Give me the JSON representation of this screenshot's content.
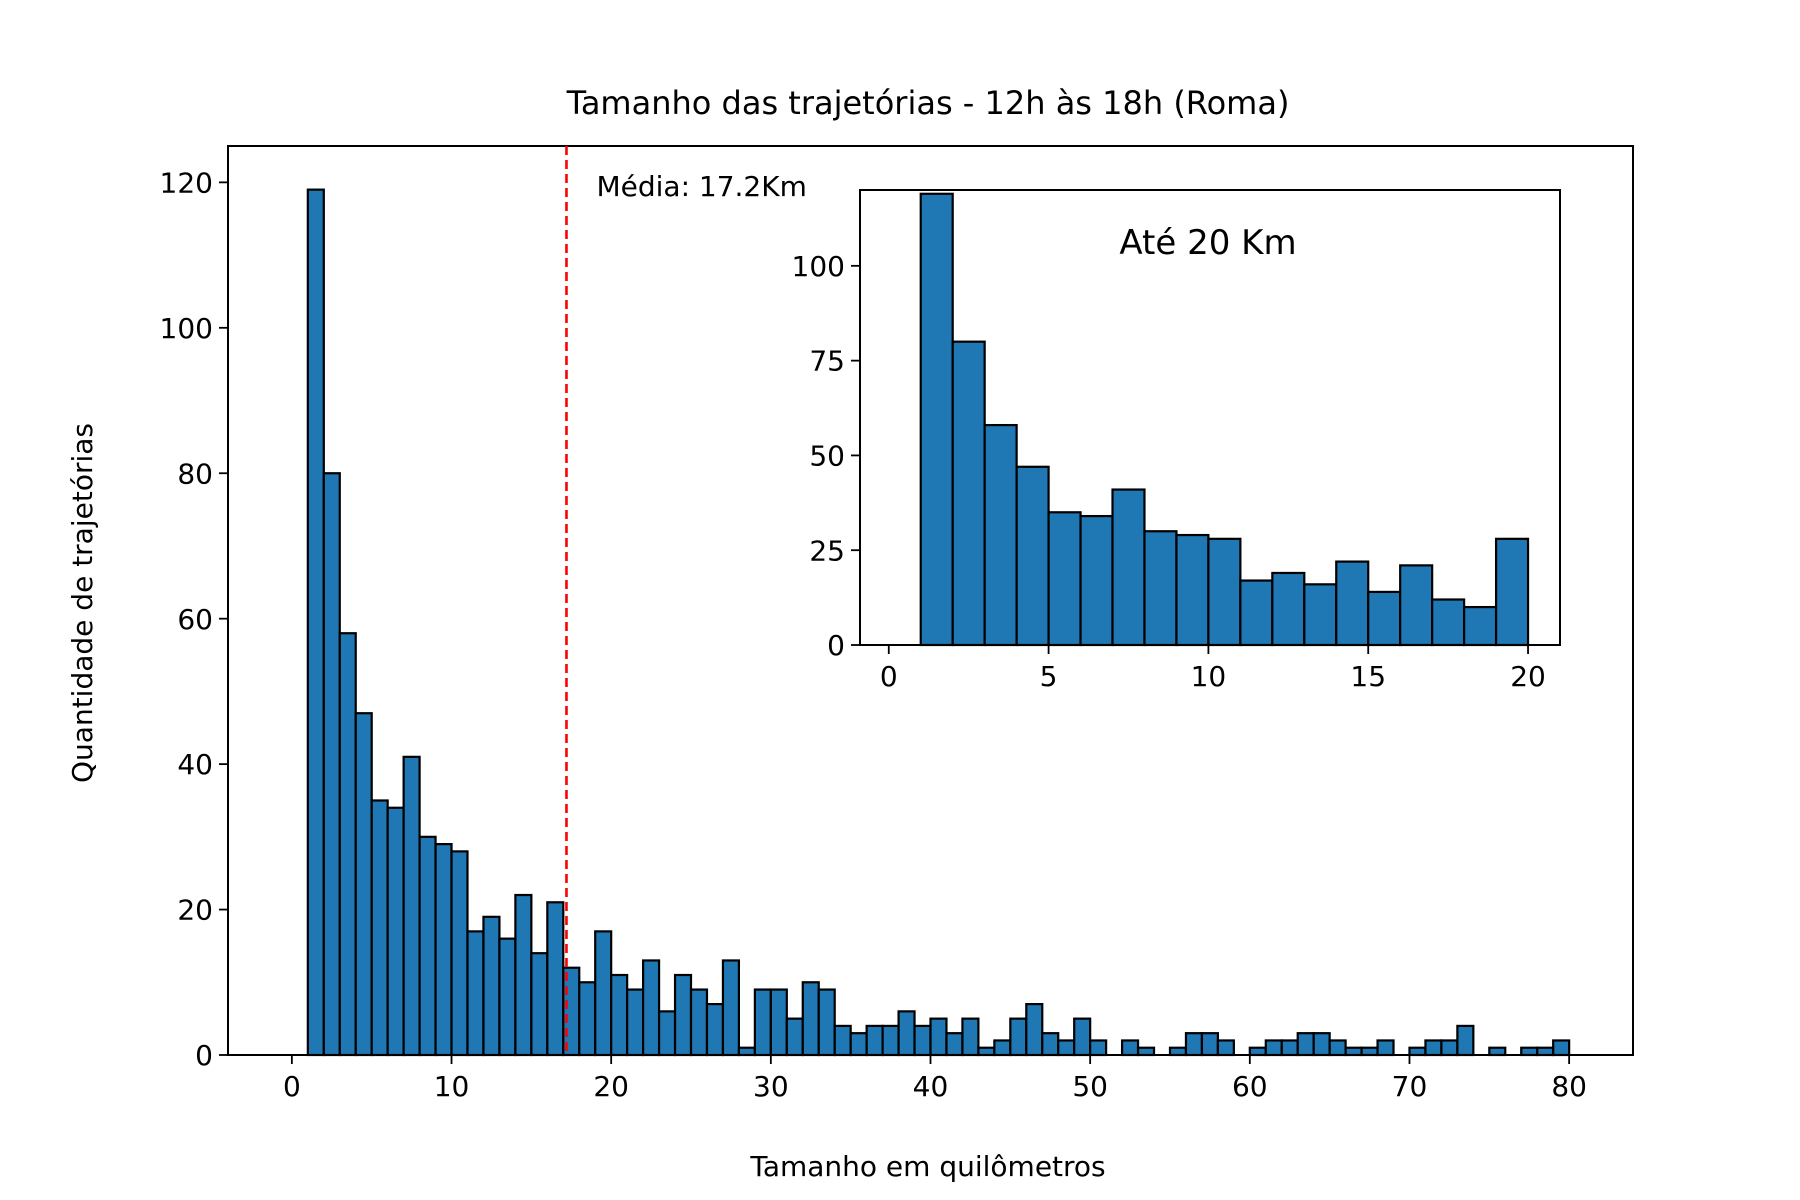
{
  "chart_data": [
    {
      "type": "bar",
      "title": "Tamanho das trajetórias - 12h às 18h (Roma)",
      "xlabel": "Tamanho em quilômetros",
      "ylabel": "Quantidade de trajetórias",
      "xlim": [
        -4,
        84
      ],
      "ylim": [
        0,
        125
      ],
      "xticks": [
        0,
        10,
        20,
        30,
        40,
        50,
        60,
        70,
        80
      ],
      "yticks": [
        0,
        20,
        40,
        60,
        80,
        100,
        120
      ],
      "bin_start": 1,
      "bin_width": 1,
      "values": [
        119,
        80,
        58,
        47,
        35,
        34,
        41,
        30,
        29,
        28,
        17,
        19,
        16,
        22,
        14,
        21,
        12,
        10,
        17,
        11,
        9,
        13,
        6,
        11,
        9,
        7,
        13,
        1,
        9,
        9,
        5,
        10,
        9,
        4,
        3,
        4,
        4,
        6,
        4,
        5,
        3,
        5,
        1,
        2,
        5,
        7,
        3,
        2,
        5,
        2,
        0,
        2,
        1,
        0,
        1,
        3,
        3,
        2,
        0,
        1,
        2,
        2,
        3,
        3,
        2,
        1,
        1,
        2,
        0,
        1,
        2,
        2,
        4,
        0,
        1,
        0,
        1,
        1,
        2
      ],
      "bar_color": "#1f77b4",
      "edge_color": "#000000",
      "mean_line": {
        "x": 17.2,
        "label": "Média: 17.2Km",
        "color": "#ff0000",
        "style": "dashed"
      }
    },
    {
      "type": "bar",
      "title": "Até 20 Km",
      "xlim": [
        -0.9,
        21
      ],
      "ylim": [
        0,
        120
      ],
      "xticks": [
        0,
        5,
        10,
        15,
        20
      ],
      "yticks": [
        0,
        25,
        50,
        75,
        100
      ],
      "bin_start": 0,
      "bin_width": 1,
      "values": [
        0,
        119,
        80,
        58,
        47,
        35,
        34,
        41,
        30,
        29,
        28,
        17,
        19,
        16,
        22,
        14,
        21,
        12,
        10,
        28
      ],
      "bar_color": "#1f77b4",
      "edge_color": "#000000"
    }
  ]
}
